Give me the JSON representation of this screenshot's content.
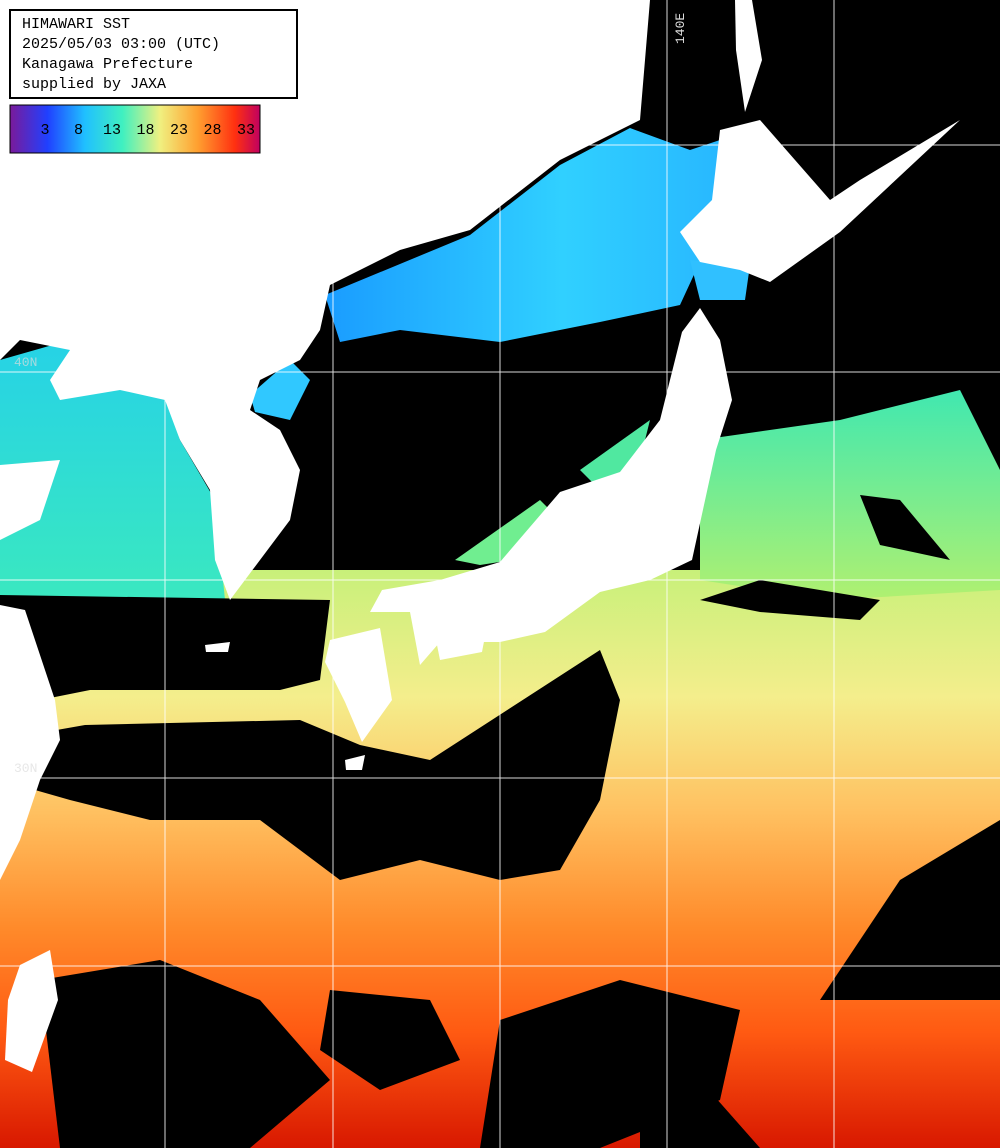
{
  "header": {
    "lines": [
      "HIMAWARI SST",
      "2025/05/03 03:00 (UTC)",
      "Kanagawa Prefecture",
      "supplied by JAXA"
    ]
  },
  "legend": {
    "ticks": [
      3,
      8,
      13,
      18,
      23,
      28,
      33
    ]
  },
  "grid_labels": {
    "lon": [
      "140E"
    ],
    "lat": [
      "40N",
      "30N"
    ]
  }
}
